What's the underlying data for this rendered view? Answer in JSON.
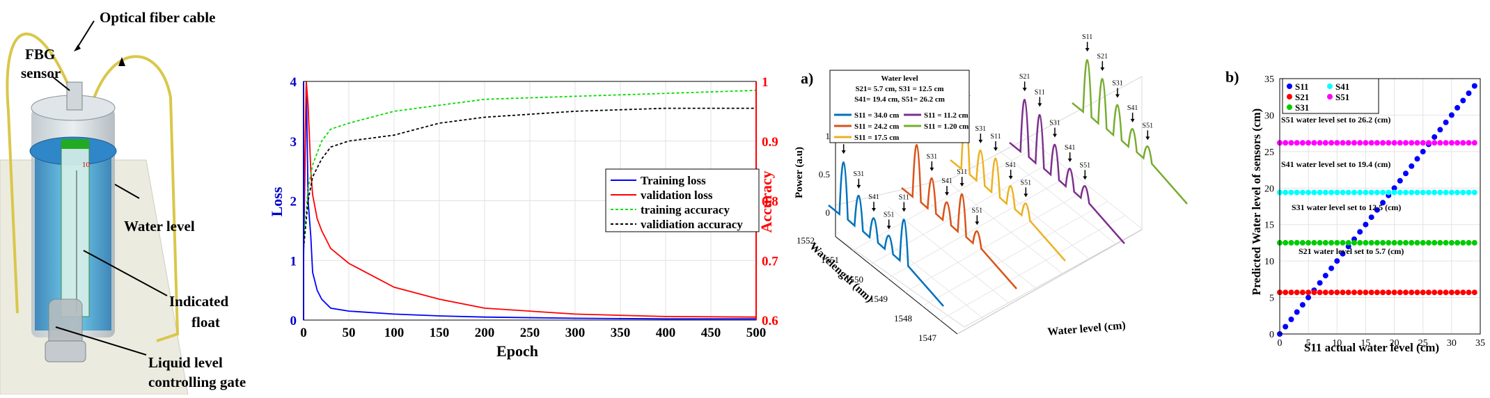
{
  "diagram": {
    "labels": {
      "optical_fiber_cable": "Optical fiber cable",
      "fbg_sensor_1": "FBG",
      "fbg_sensor_2": "sensor",
      "water_level": "Water level",
      "indicated_1": "Indicated",
      "indicated_2": "float",
      "gate_1": "Liquid level",
      "gate_2": "controlling gate",
      "ruler_mark": "10"
    }
  },
  "chart_data": [
    {
      "type": "line",
      "title": "",
      "xlabel": "Epoch",
      "ylabel_left": "Loss",
      "ylabel_right": "Accuracy",
      "xlim": [
        0,
        500
      ],
      "ylim_left": [
        0,
        4
      ],
      "ylim_right": [
        0.6,
        1
      ],
      "x_ticks": [
        0,
        50,
        100,
        150,
        200,
        250,
        300,
        350,
        400,
        450,
        500
      ],
      "y_ticks_left": [
        0,
        1,
        2,
        3,
        4
      ],
      "y_ticks_right": [
        0.6,
        0.7,
        0.8,
        0.9,
        1
      ],
      "grid": true,
      "legend_position": "right",
      "colors": {
        "left_axis": "#0000cc",
        "right_axis": "#ff0000"
      },
      "series": [
        {
          "name": "Training loss",
          "axis": "left",
          "color": "#0000ff",
          "style": "solid",
          "x": [
            0,
            3,
            5,
            8,
            10,
            15,
            20,
            30,
            50,
            100,
            150,
            200,
            300,
            400,
            500
          ],
          "y": [
            1.0,
            4.0,
            2.0,
            1.4,
            0.8,
            0.5,
            0.35,
            0.2,
            0.15,
            0.1,
            0.07,
            0.05,
            0.03,
            0.02,
            0.02
          ]
        },
        {
          "name": "validation loss",
          "axis": "left",
          "color": "#ff0000",
          "style": "solid",
          "x": [
            0,
            3,
            5,
            8,
            10,
            15,
            20,
            30,
            50,
            100,
            150,
            200,
            300,
            400,
            500
          ],
          "y": [
            1.5,
            4.0,
            3.6,
            2.5,
            2.1,
            1.7,
            1.5,
            1.2,
            0.95,
            0.55,
            0.35,
            0.2,
            0.1,
            0.06,
            0.05
          ]
        },
        {
          "name": "training accuracy",
          "axis": "right",
          "color": "#00dd00",
          "style": "dashed",
          "x": [
            0,
            5,
            10,
            20,
            30,
            50,
            100,
            150,
            200,
            300,
            400,
            500
          ],
          "y": [
            0.73,
            0.82,
            0.86,
            0.9,
            0.92,
            0.93,
            0.95,
            0.96,
            0.97,
            0.975,
            0.98,
            0.985
          ]
        },
        {
          "name": "validiation accuracy",
          "axis": "right",
          "color": "#000000",
          "style": "dashed",
          "x": [
            0,
            5,
            10,
            20,
            30,
            50,
            100,
            150,
            200,
            300,
            400,
            500
          ],
          "y": [
            0.72,
            0.8,
            0.84,
            0.87,
            0.89,
            0.9,
            0.91,
            0.93,
            0.94,
            0.95,
            0.955,
            0.955
          ]
        }
      ]
    },
    {
      "type": "line",
      "panel_label": "a)",
      "zlabel": "Power (a.u)",
      "ylabel": "Wavelength (nm)",
      "xlabel": "Water level (cm)",
      "z_ticks": [
        "1",
        "0.5",
        "0"
      ],
      "wavelength_ticks": [
        "1552",
        "1551",
        "1550",
        "1549",
        "1548",
        "1547"
      ],
      "legend": {
        "title": "Water level",
        "line1": "S21= 5.7 cm, S31 = 12.5 cm",
        "line2": "S41= 19.4 cm, S51= 26.2 cm",
        "entries": [
          "S11 = 34.0 cm",
          "S11 = 11.2 cm",
          "S11 = 24.2 cm",
          "S11 = 1.20 cm",
          "S11 = 17.5 cm"
        ],
        "entry_colors": [
          "#0072bd",
          "#7e2f8e",
          "#d95319",
          "#77ac30",
          "#edb120"
        ]
      },
      "series": [
        {
          "name": "S11 = 34.0 cm",
          "color": "#0072bd",
          "peaks": [
            {
              "label": "S21",
              "height": 0.75
            },
            {
              "label": "S31",
              "height": 0.45
            },
            {
              "label": "S41",
              "height": 0.3
            },
            {
              "label": "S51",
              "height": 0.22
            },
            {
              "label": "S11",
              "height": 0.6
            }
          ]
        },
        {
          "name": "S11 = 24.2 cm",
          "color": "#d95319",
          "peaks": [
            {
              "label": "S21",
              "height": 0.75
            },
            {
              "label": "S31",
              "height": 0.45
            },
            {
              "label": "S41",
              "height": 0.28
            },
            {
              "label": "S11",
              "height": 0.55
            },
            {
              "label": "S51",
              "height": 0.2
            }
          ]
        },
        {
          "name": "S11 = 17.5 cm",
          "color": "#edb120",
          "peaks": [
            {
              "label": "S21",
              "height": 0.75
            },
            {
              "label": "S31",
              "height": 0.45
            },
            {
              "label": "S11",
              "height": 0.5
            },
            {
              "label": "S41",
              "height": 0.28
            },
            {
              "label": "S51",
              "height": 0.2
            }
          ]
        },
        {
          "name": "S11 = 11.2 cm",
          "color": "#7e2f8e",
          "peaks": [
            {
              "label": "S21",
              "height": 0.75
            },
            {
              "label": "S11",
              "height": 0.7
            },
            {
              "label": "S31",
              "height": 0.45
            },
            {
              "label": "S41",
              "height": 0.28
            },
            {
              "label": "S51",
              "height": 0.2
            }
          ]
        },
        {
          "name": "S11 = 1.20 cm",
          "color": "#77ac30",
          "peaks": [
            {
              "label": "S11",
              "height": 0.75
            },
            {
              "label": "S21",
              "height": 0.65
            },
            {
              "label": "S31",
              "height": 0.45
            },
            {
              "label": "S41",
              "height": 0.28
            },
            {
              "label": "S51",
              "height": 0.2
            }
          ]
        }
      ]
    },
    {
      "type": "scatter",
      "panel_label": "b)",
      "xlabel": "S11 actual water level (cm)",
      "ylabel": "Predicted Water level of sensors (cm)",
      "xlim": [
        0,
        35
      ],
      "ylim": [
        0,
        35
      ],
      "x_ticks": [
        0,
        5,
        10,
        15,
        20,
        25,
        30,
        35
      ],
      "y_ticks": [
        0,
        5,
        10,
        15,
        20,
        25,
        30,
        35
      ],
      "grid": true,
      "legend_position": "top-left",
      "annotations": [
        "S51 water level set to 26.2 (cm)",
        "S41 water level set to 19.4 (cm)",
        "S31 water level set to 12.5 (cm)",
        "S21 water level set to 5.7 (cm)"
      ],
      "series": [
        {
          "name": "S11",
          "color": "#0000ff",
          "kind": "diagonal",
          "x_from": 0,
          "x_to": 34,
          "step": 1
        },
        {
          "name": "S21",
          "color": "#ff0000",
          "kind": "constant",
          "value": 5.7,
          "x_from": 0,
          "x_to": 34,
          "step": 1
        },
        {
          "name": "S31",
          "color": "#00cc00",
          "kind": "constant",
          "value": 12.5,
          "x_from": 0,
          "x_to": 34,
          "step": 1
        },
        {
          "name": "S41",
          "color": "#00ffff",
          "kind": "constant",
          "value": 19.4,
          "x_from": 0,
          "x_to": 34,
          "step": 1
        },
        {
          "name": "S51",
          "color": "#ff00ff",
          "kind": "constant",
          "value": 26.2,
          "x_from": 0,
          "x_to": 34,
          "step": 1
        }
      ]
    }
  ]
}
